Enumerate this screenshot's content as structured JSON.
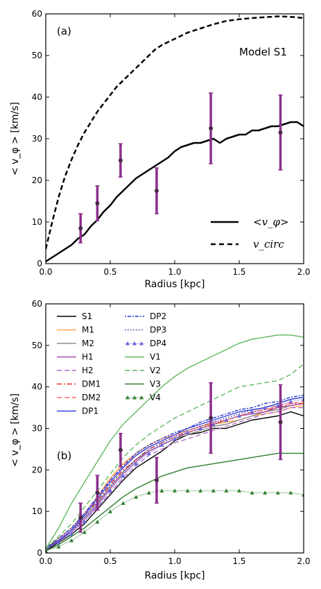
{
  "chart_data": [
    {
      "type": "line",
      "panel_label": "(a)",
      "annotation": "Model S1",
      "xlabel": "Radius [kpc]",
      "ylabel": "< v_φ > [km/s]",
      "xlim": [
        0,
        2.0
      ],
      "ylim": [
        0,
        60
      ],
      "xticks": [
        "0.0",
        "0.5",
        "1.0",
        "1.5",
        "2.0"
      ],
      "yticks": [
        "0",
        "10",
        "20",
        "30",
        "40",
        "50",
        "60"
      ],
      "legend_position": "lower-right",
      "series": [
        {
          "name": "<v_φ>",
          "style": "solid",
          "color": "#000000",
          "x": [
            0.0,
            0.05,
            0.1,
            0.15,
            0.2,
            0.25,
            0.3,
            0.35,
            0.4,
            0.45,
            0.5,
            0.55,
            0.6,
            0.65,
            0.7,
            0.75,
            0.8,
            0.85,
            0.9,
            0.95,
            1.0,
            1.05,
            1.1,
            1.15,
            1.2,
            1.25,
            1.3,
            1.35,
            1.4,
            1.45,
            1.5,
            1.55,
            1.6,
            1.65,
            1.7,
            1.75,
            1.8,
            1.85,
            1.9,
            1.95,
            2.0
          ],
          "y": [
            0.5,
            1.5,
            2.5,
            3.5,
            4.5,
            6,
            7,
            9,
            10.5,
            12.5,
            14,
            16,
            17.5,
            19,
            20.5,
            21.5,
            22.5,
            23.5,
            24.5,
            25.5,
            27,
            28,
            28.5,
            29,
            29,
            29.5,
            30,
            29,
            30,
            30.5,
            31,
            31,
            32,
            32,
            32.5,
            33,
            33,
            33.5,
            34,
            34,
            33
          ]
        },
        {
          "name": "v_circ",
          "style": "dashed",
          "color": "#000000",
          "x": [
            0.0,
            0.05,
            0.1,
            0.15,
            0.2,
            0.25,
            0.3,
            0.35,
            0.4,
            0.45,
            0.5,
            0.55,
            0.6,
            0.65,
            0.7,
            0.75,
            0.8,
            0.85,
            0.9,
            1.0,
            1.1,
            1.2,
            1.3,
            1.4,
            1.5,
            1.6,
            1.7,
            1.8,
            1.9,
            2.0
          ],
          "y": [
            3.5,
            10,
            16,
            21,
            25,
            28.5,
            31.5,
            34,
            36.5,
            38.5,
            40.5,
            42.5,
            44,
            45.5,
            47,
            48.5,
            50,
            51.5,
            52.5,
            54,
            55.5,
            56.5,
            57.5,
            58.3,
            58.7,
            59,
            59.2,
            59.4,
            59.3,
            59
          ]
        }
      ],
      "observations": {
        "color": "#8b2f8b",
        "x": [
          0.27,
          0.4,
          0.58,
          0.86,
          1.28,
          1.82
        ],
        "y": [
          8.5,
          14.5,
          24.8,
          17.5,
          32.5,
          31.5
        ],
        "err": [
          3.5,
          4.2,
          4,
          5.5,
          8.5,
          9
        ]
      }
    },
    {
      "type": "line",
      "panel_label": "(b)",
      "xlabel": "Radius [kpc]",
      "ylabel": "< v_φ > [km/s]",
      "xlim": [
        0,
        2.0
      ],
      "ylim": [
        0,
        60
      ],
      "xticks": [
        "0.0",
        "0.5",
        "1.0",
        "1.5",
        "2.0"
      ],
      "yticks": [
        "0",
        "10",
        "20",
        "30",
        "40",
        "50",
        "60"
      ],
      "legend_position": "upper-left",
      "x": [
        0.0,
        0.1,
        0.2,
        0.3,
        0.4,
        0.5,
        0.6,
        0.7,
        0.8,
        0.9,
        1.0,
        1.1,
        1.2,
        1.3,
        1.4,
        1.5,
        1.6,
        1.7,
        1.8,
        1.9,
        2.0
      ],
      "series": [
        {
          "name": "S1",
          "color": "#000000",
          "style": "solid",
          "y": [
            0.5,
            2.5,
            4.5,
            7,
            10.5,
            14,
            17.5,
            20.5,
            22.5,
            24.5,
            27,
            28.5,
            29,
            30,
            30,
            31,
            32,
            32.5,
            33,
            34,
            33
          ]
        },
        {
          "name": "M1",
          "color": "#ffa64d",
          "style": "solid",
          "y": [
            1,
            3.5,
            6,
            9.5,
            13.5,
            18,
            21.5,
            24,
            26,
            27.5,
            28.5,
            29.5,
            30.5,
            31,
            31.5,
            32,
            33,
            33.5,
            34,
            35,
            35.5
          ]
        },
        {
          "name": "M2",
          "color": "#8c8c8c",
          "style": "solid",
          "y": [
            1,
            3,
            5.5,
            8.5,
            12,
            16,
            19.5,
            22.5,
            24.5,
            26,
            27.5,
            28.5,
            29.5,
            30.5,
            31,
            32,
            33,
            34,
            34.5,
            35.5,
            36
          ]
        },
        {
          "name": "H1",
          "color": "#a64da6",
          "style": "solid",
          "y": [
            0.8,
            2.8,
            5,
            8,
            11.5,
            15.5,
            19,
            22,
            24.5,
            26,
            27.5,
            29,
            30,
            31,
            32,
            33,
            33.5,
            34,
            35,
            35.5,
            36
          ]
        },
        {
          "name": "H2",
          "color": "#b266cc",
          "style": "dashed",
          "y": [
            1,
            3,
            5,
            8,
            11,
            14.5,
            18,
            21,
            23.5,
            25,
            26.5,
            27.5,
            28.5,
            29.5,
            30.5,
            31.5,
            32.5,
            33.5,
            34,
            35,
            35
          ]
        },
        {
          "name": "DM1",
          "color": "#e62e2e",
          "style": "dash-dot",
          "y": [
            1,
            3,
            5.5,
            9,
            12.5,
            16.5,
            20,
            22.5,
            25,
            26.5,
            28,
            29,
            30,
            31,
            32,
            33,
            34,
            34.5,
            35,
            36,
            36
          ]
        },
        {
          "name": "DM2",
          "color": "#ff6666",
          "style": "dashed",
          "y": [
            1.2,
            3.5,
            6,
            9.5,
            13.5,
            17.5,
            21,
            23.5,
            25.5,
            27,
            28.5,
            29.5,
            30.5,
            31.5,
            32,
            33,
            34,
            34.5,
            35.5,
            36,
            36.5
          ]
        },
        {
          "name": "DP1",
          "color": "#3344dd",
          "style": "solid",
          "y": [
            1,
            3,
            5.5,
            9,
            13,
            17,
            20.5,
            23.5,
            25.5,
            27,
            28.5,
            30,
            31,
            32,
            33,
            34,
            34.5,
            35,
            36,
            37,
            37.5
          ]
        },
        {
          "name": "DP2",
          "color": "#2233cc",
          "style": "dot-dash",
          "y": [
            1.2,
            3.5,
            6,
            9.5,
            13.5,
            17.5,
            21,
            24,
            26,
            27.5,
            29,
            30,
            31.5,
            32.5,
            33.5,
            34.5,
            35,
            36,
            36.5,
            37.5,
            38
          ]
        },
        {
          "name": "DP3",
          "color": "#3333aa",
          "style": "dotted",
          "y": [
            1,
            3,
            5,
            8.5,
            12,
            16,
            19.5,
            22.5,
            25,
            26.5,
            28,
            29.5,
            30.5,
            31.5,
            32.5,
            33.5,
            34.5,
            35,
            36,
            37,
            37.5
          ]
        },
        {
          "name": "DP4",
          "color": "#6666dd",
          "style": "triangle",
          "y": [
            1,
            2.5,
            4.5,
            7.5,
            11,
            15,
            18.5,
            21.5,
            24,
            26,
            27.5,
            29,
            30,
            31,
            32,
            33,
            34,
            35,
            35.5,
            36.5,
            37
          ]
        },
        {
          "name": "V1",
          "color": "#5cb85c",
          "style": "solid",
          "y": [
            1,
            6,
            12,
            17,
            22,
            27,
            31,
            34,
            37,
            40,
            42.5,
            44.5,
            46,
            47.5,
            49,
            50.5,
            51.5,
            52,
            52.5,
            52.5,
            52
          ]
        },
        {
          "name": "V2",
          "color": "#5cb85c",
          "style": "dashed",
          "y": [
            1,
            4,
            7,
            11,
            15,
            19,
            23,
            26,
            28.5,
            30.5,
            32.5,
            34,
            35.5,
            37,
            38.5,
            40,
            40.5,
            41,
            41.5,
            43,
            45.5
          ]
        },
        {
          "name": "V3",
          "color": "#2e7d2e",
          "style": "solid",
          "y": [
            0.5,
            2,
            4,
            6,
            8.5,
            11,
            13.5,
            15.5,
            17,
            18.5,
            19.5,
            20.5,
            21,
            21.5,
            22,
            22.5,
            23,
            23.5,
            24,
            24,
            24
          ]
        },
        {
          "name": "V4",
          "color": "#2e7d2e",
          "style": "triangle",
          "y": [
            0.5,
            1.5,
            3,
            5,
            7.5,
            10,
            12,
            13.5,
            14.5,
            15,
            15,
            15,
            15,
            15,
            15,
            15,
            14.5,
            14.5,
            14.5,
            14.5,
            14
          ]
        }
      ],
      "observations": {
        "color": "#8b2f8b",
        "x": [
          0.27,
          0.4,
          0.58,
          0.86,
          1.28,
          1.82
        ],
        "y": [
          8.5,
          14.5,
          24.8,
          17.5,
          32.5,
          31.5
        ],
        "err": [
          3.5,
          4.2,
          4,
          5.5,
          8.5,
          9
        ]
      }
    }
  ]
}
